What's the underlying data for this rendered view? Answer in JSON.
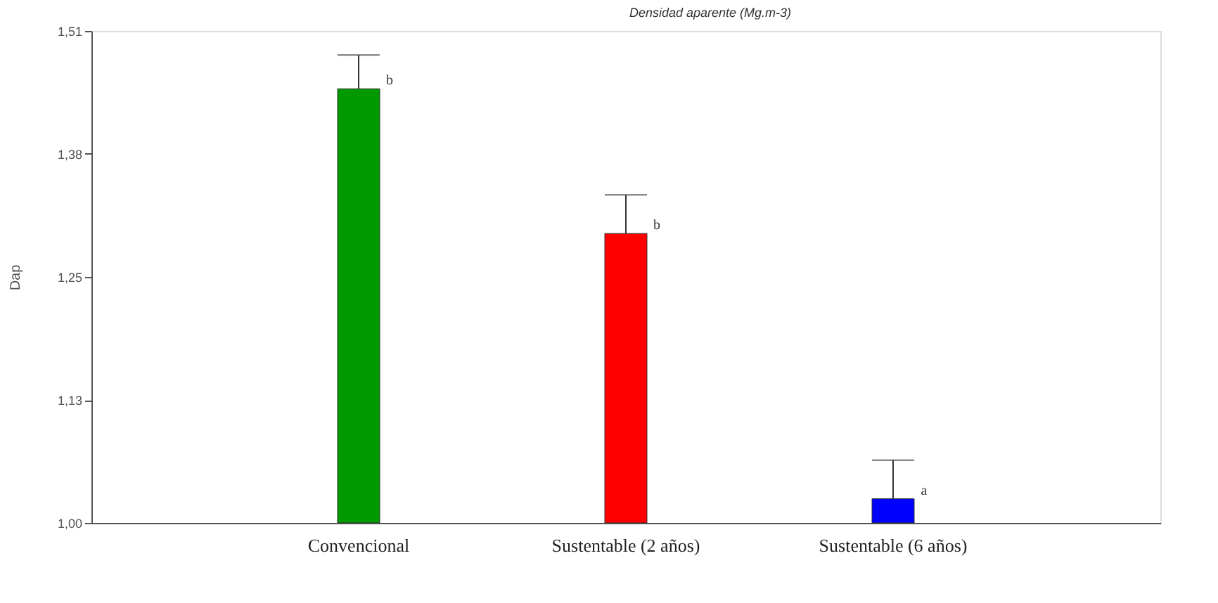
{
  "chart_data": {
    "type": "bar",
    "title": "Densidad aparente (Mg.m-3)",
    "ylabel": "Dap",
    "categories": [
      "Convencional",
      "Sustentable (2 años)",
      "Sustentable (6 años)"
    ],
    "values": [
      1.45,
      1.3,
      1.025
    ],
    "colors": [
      "#009900",
      "#ff0000",
      "#0000ff"
    ],
    "errors": [
      0.035,
      0.04,
      0.04
    ],
    "ylim": [
      1.0,
      1.51
    ],
    "yticks": [
      {
        "value": 1.0,
        "label": "1,00"
      },
      {
        "value": 1.1275,
        "label": "1,13"
      },
      {
        "value": 1.255,
        "label": "1,25"
      },
      {
        "value": 1.3825,
        "label": "1,38"
      },
      {
        "value": 1.51,
        "label": "1,51"
      }
    ],
    "annotations": [
      {
        "text": "b",
        "x": "Convencional",
        "y": 1.45
      },
      {
        "text": "b",
        "x": "Sustentable (2 años)",
        "y": 1.3
      },
      {
        "text": "a",
        "x": "Sustentable (6 años)",
        "y": 1.025
      }
    ],
    "grid": false
  }
}
